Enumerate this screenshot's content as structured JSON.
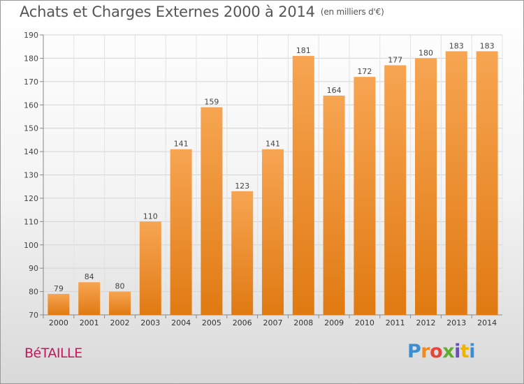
{
  "title": "Achats et Charges Externes 2000 à 2014",
  "unit": "(en milliers d'€)",
  "commune": "BéTAILLE",
  "logo": {
    "p": "P",
    "r": "r",
    "o": "o",
    "x": "x",
    "i": "i",
    "t": "t",
    "i2": "i"
  },
  "colors": {
    "bar_top": "#f7a552",
    "bar_bottom": "#e07a12",
    "label": "#444444",
    "commune": "#c2185b"
  },
  "chart_data": {
    "type": "bar",
    "categories": [
      "2000",
      "2001",
      "2002",
      "2003",
      "2004",
      "2005",
      "2006",
      "2007",
      "2008",
      "2009",
      "2010",
      "2011",
      "2012",
      "2013",
      "2014"
    ],
    "values": [
      79,
      84,
      80,
      110,
      141,
      159,
      123,
      141,
      181,
      164,
      172,
      177,
      180,
      183,
      183
    ],
    "ylim": [
      70,
      190
    ],
    "yticks": [
      70,
      80,
      90,
      100,
      110,
      120,
      130,
      140,
      150,
      160,
      170,
      180,
      190
    ],
    "grid": true
  }
}
